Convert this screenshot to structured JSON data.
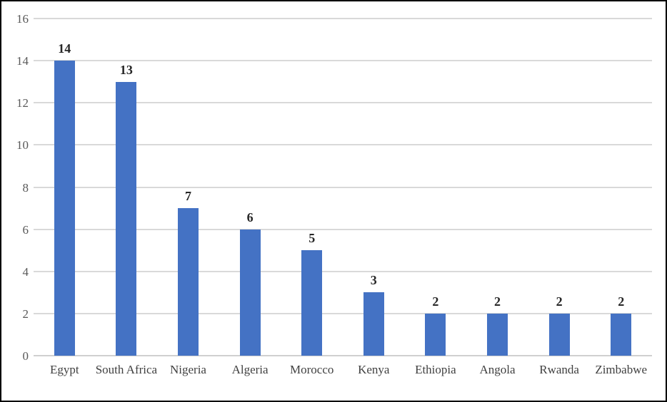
{
  "chart_data": {
    "type": "bar",
    "title": "",
    "xlabel": "",
    "ylabel": "",
    "categories": [
      "Egypt",
      "South Africa",
      "Nigeria",
      "Algeria",
      "Morocco",
      "Kenya",
      "Ethiopia",
      "Angola",
      "Rwanda",
      "Zimbabwe"
    ],
    "values": [
      14,
      13,
      7,
      6,
      5,
      3,
      2,
      2,
      2,
      2
    ],
    "data_labels": [
      "14",
      "13",
      "7",
      "6",
      "5",
      "3",
      "2",
      "2",
      "2",
      "2"
    ],
    "ylim": [
      0,
      16
    ],
    "yticks": [
      0,
      2,
      4,
      6,
      8,
      10,
      12,
      14,
      16
    ],
    "ytick_labels": [
      "0",
      "2",
      "4",
      "6",
      "8",
      "10",
      "12",
      "14",
      "16"
    ],
    "grid": "horizontal",
    "legend": "none",
    "colors": {
      "bar": "#4472c4",
      "gridline": "#d9d9d9",
      "axis_line": "#d0d0d0",
      "tick_label": "#595959",
      "value_label": "#262626",
      "frame_border": "#000000",
      "background": "#ffffff"
    }
  }
}
